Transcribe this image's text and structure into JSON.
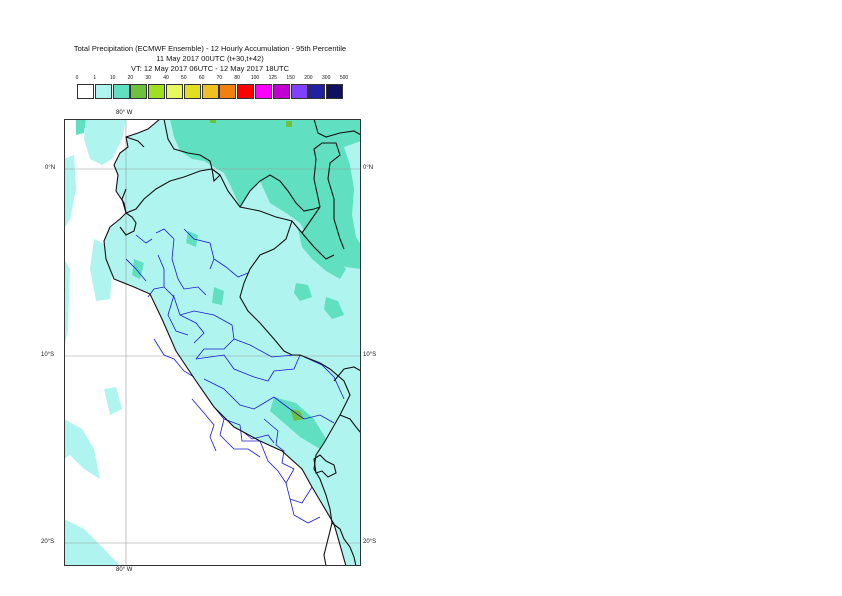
{
  "header": {
    "title": "Total Precipitation (ECMWF Ensemble) - 12 Hourly Accumulation - 95th Percentile",
    "base_time": "11 May 2017 00UTC (t+30,t+42)",
    "valid_time": "VT: 12 May 2017 06UTC - 12 May 2017 18UTC"
  },
  "legend": {
    "labels": [
      "0",
      "1",
      "10",
      "20",
      "30",
      "40",
      "50",
      "60",
      "70",
      "80",
      "100",
      "125",
      "150",
      "200",
      "300",
      "500"
    ],
    "colors": [
      "#ffffff",
      "#b0f4f0",
      "#60e0c0",
      "#70c040",
      "#a0e020",
      "#e8f860",
      "#e0e020",
      "#f0c020",
      "#f08010",
      "#ff0000",
      "#ff00ff",
      "#c000d0",
      "#8040ff",
      "#2020a0",
      "#101060"
    ]
  },
  "map": {
    "lon_label_top": "80° W",
    "lon_label_bottom": "80° W",
    "lat_left": [
      "0°N",
      "10°S",
      "20°S"
    ],
    "lat_right": [
      "0°N",
      "10°S",
      "20°S"
    ]
  }
}
